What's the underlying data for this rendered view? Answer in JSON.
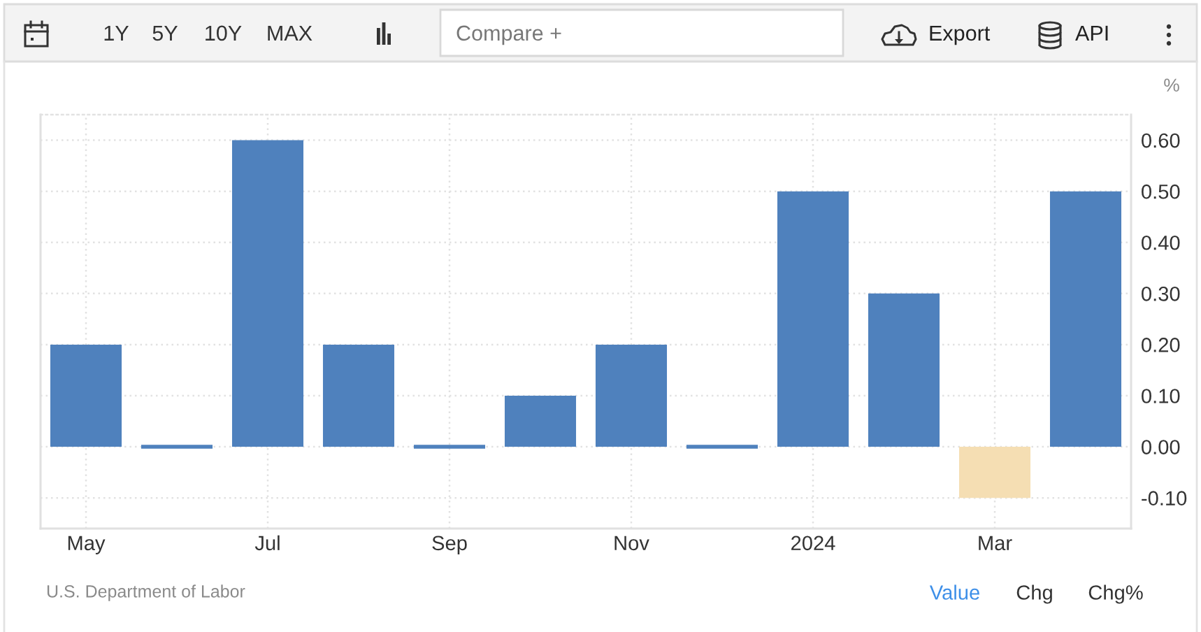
{
  "chart_data": {
    "type": "bar",
    "categories": [
      "May",
      null,
      "Jul",
      null,
      "Sep",
      null,
      "Nov",
      null,
      "2024",
      null,
      "Mar",
      null
    ],
    "values": [
      0.2,
      0,
      0.6,
      0.2,
      0,
      0.1,
      0.2,
      0,
      0.5,
      0.3,
      -0.1,
      0.5
    ],
    "colors": [
      "#4f81bd",
      "#4f81bd",
      "#4f81bd",
      "#4f81bd",
      "#4f81bd",
      "#4f81bd",
      "#4f81bd",
      "#4f81bd",
      "#4f81bd",
      "#4f81bd",
      "#f5deb3",
      "#4f81bd"
    ],
    "ylabel": "%",
    "ylim": [
      -0.16,
      0.65
    ],
    "yticks": [
      {
        "value": -0.1,
        "label": "-0.10"
      },
      {
        "value": 0,
        "label": "0.00"
      },
      {
        "value": 0.1,
        "label": "0.10"
      },
      {
        "value": 0.2,
        "label": "0.20"
      },
      {
        "value": 0.3,
        "label": "0.30"
      },
      {
        "value": 0.4,
        "label": "0.40"
      },
      {
        "value": 0.5,
        "label": "0.50"
      },
      {
        "value": 0.6,
        "label": "0.60"
      }
    ],
    "grid": true,
    "annotations": [
      "1Y",
      "5Y",
      "10Y",
      "MAX",
      "Compare +",
      "Export",
      "API",
      "U.S. Department of Labor",
      "Value",
      "Chg",
      "Chg%"
    ]
  }
}
